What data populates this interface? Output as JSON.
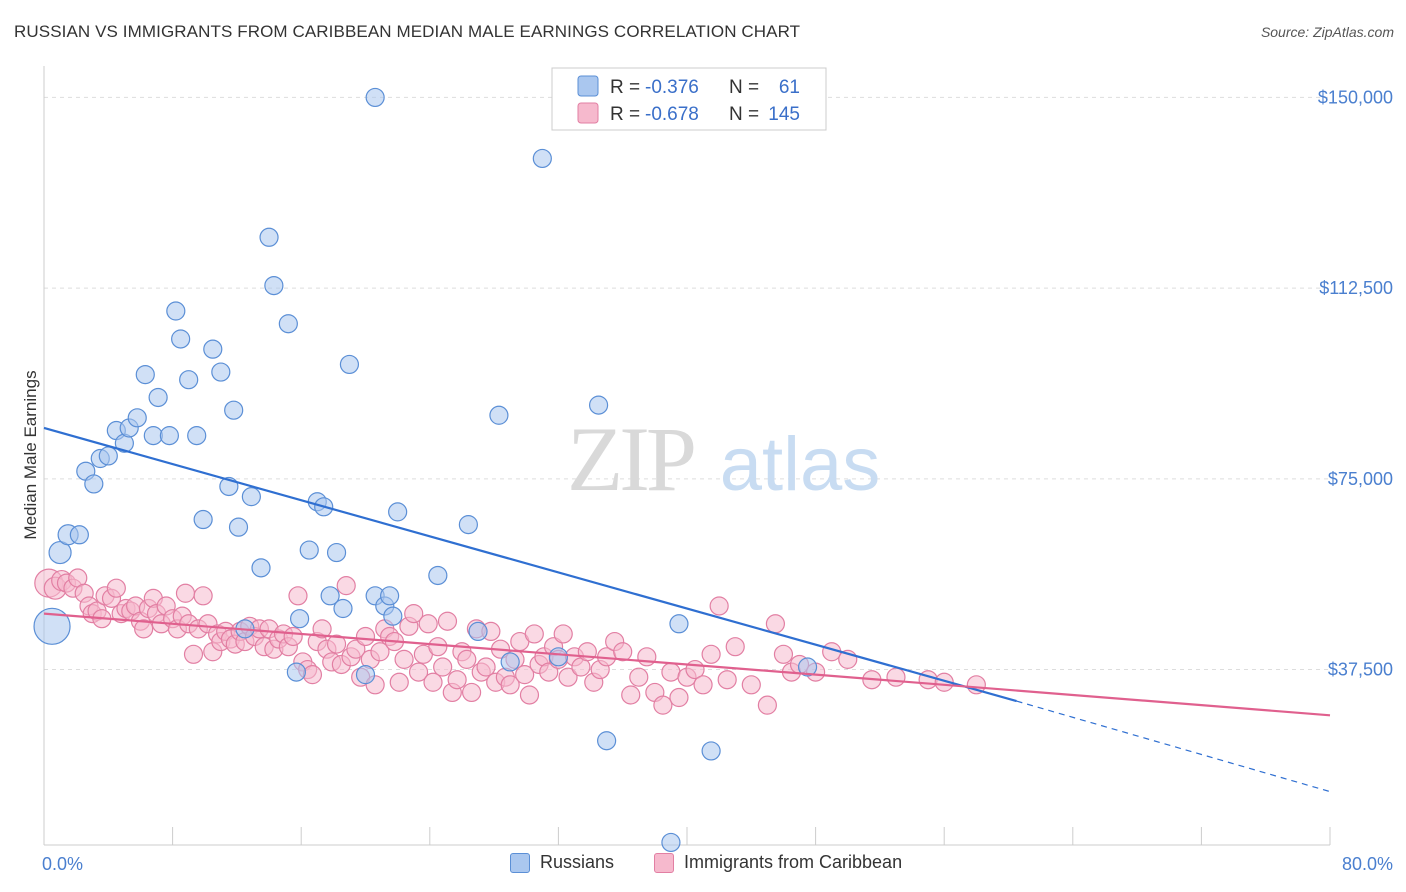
{
  "title": "RUSSIAN VS IMMIGRANTS FROM CARIBBEAN MEDIAN MALE EARNINGS CORRELATION CHART",
  "source": "Source: ZipAtlas.com",
  "watermark": {
    "zip": "ZIP",
    "atlas": "atlas"
  },
  "colors": {
    "blue_fill": "#aac7ef",
    "blue_stroke": "#5b8fd6",
    "blue_line": "#2f6fd1",
    "pink_fill": "#f6b9cd",
    "pink_stroke": "#e27fa3",
    "pink_line": "#e0608e",
    "tick_label": "#4a7fcf",
    "grid": "#dddddd"
  },
  "legend": {
    "rows": [
      {
        "r_label": "R =",
        "r_value": "-0.376",
        "n_label": "N =",
        "n_value": "61",
        "series": "russians"
      },
      {
        "r_label": "R =",
        "r_value": "-0.678",
        "n_label": "N =",
        "n_value": "145",
        "series": "caribbean"
      }
    ]
  },
  "bottom_legend": {
    "russians": "Russians",
    "caribbean": "Immigrants from Caribbean"
  },
  "chart_data": {
    "type": "scatter",
    "xlabel": "",
    "ylabel": "Median Male Earnings",
    "xlim": [
      0,
      80
    ],
    "ylim": [
      3000,
      155000
    ],
    "x_tick_labels": [
      "0.0%",
      "80.0%"
    ],
    "y_ticks": [
      37500,
      75000,
      112500,
      150000
    ],
    "y_tick_labels": [
      "$37,500",
      "$75,000",
      "$112,500",
      "$150,000"
    ],
    "grid": true,
    "series": [
      {
        "name": "Russians",
        "r": -0.376,
        "n": 61,
        "trend": {
          "x0": 0,
          "y0": 85000,
          "x1": 60.5,
          "y1": 31300,
          "dash_to_x": 80,
          "dash_to_y": 13500
        },
        "points": [
          [
            0.5,
            46000,
            18
          ],
          [
            1.0,
            60500,
            11
          ],
          [
            1.5,
            64000,
            10
          ],
          [
            2.2,
            64000,
            9
          ],
          [
            2.6,
            76500,
            9
          ],
          [
            3.1,
            74000,
            9
          ],
          [
            3.5,
            79000,
            9
          ],
          [
            4.0,
            79500,
            9
          ],
          [
            4.5,
            84500,
            9
          ],
          [
            5.0,
            82000,
            9
          ],
          [
            5.3,
            85000,
            9
          ],
          [
            5.8,
            87000,
            9
          ],
          [
            6.3,
            95500,
            9
          ],
          [
            6.8,
            83500,
            9
          ],
          [
            7.1,
            91000,
            9
          ],
          [
            7.8,
            83500,
            9
          ],
          [
            8.2,
            108000,
            9
          ],
          [
            8.5,
            102500,
            9
          ],
          [
            9.0,
            94500,
            9
          ],
          [
            9.5,
            83500,
            9
          ],
          [
            9.9,
            67000,
            9
          ],
          [
            10.5,
            100500,
            9
          ],
          [
            11.0,
            96000,
            9
          ],
          [
            11.5,
            73500,
            9
          ],
          [
            11.8,
            88500,
            9
          ],
          [
            12.1,
            65500,
            9
          ],
          [
            12.9,
            71500,
            9
          ],
          [
            13.5,
            57500,
            9
          ],
          [
            14.0,
            122500,
            9
          ],
          [
            14.3,
            113000,
            9
          ],
          [
            15.2,
            105500,
            9
          ],
          [
            15.7,
            37000,
            9
          ],
          [
            15.9,
            47500,
            9
          ],
          [
            16.5,
            61000,
            9
          ],
          [
            17.0,
            70500,
            9
          ],
          [
            17.4,
            69500,
            9
          ],
          [
            18.2,
            60500,
            9
          ],
          [
            18.6,
            49500,
            9
          ],
          [
            19.0,
            97500,
            9
          ],
          [
            17.8,
            52000,
            9
          ],
          [
            20.0,
            36500,
            9
          ],
          [
            20.6,
            52000,
            9
          ],
          [
            21.2,
            50000,
            9
          ],
          [
            21.7,
            48000,
            9
          ],
          [
            22.0,
            68500,
            9
          ],
          [
            24.5,
            56000,
            9
          ],
          [
            26.4,
            66000,
            9
          ],
          [
            27.0,
            45000,
            9
          ],
          [
            28.3,
            87500,
            9
          ],
          [
            29.0,
            39000,
            9
          ],
          [
            31.0,
            138000,
            9
          ],
          [
            32.0,
            40000,
            9
          ],
          [
            34.5,
            89500,
            9
          ],
          [
            35.0,
            23500,
            9
          ],
          [
            39.0,
            3500,
            9
          ],
          [
            39.5,
            46500,
            9
          ],
          [
            41.5,
            21500,
            9
          ],
          [
            47.5,
            38000,
            9
          ],
          [
            20.6,
            150000,
            9
          ],
          [
            21.5,
            52000,
            9
          ],
          [
            12.5,
            45500,
            9
          ]
        ]
      },
      {
        "name": "Immigrants from Caribbean",
        "r": -0.678,
        "n": 145,
        "trend": {
          "x0": 0,
          "y0": 48500,
          "x1": 80,
          "y1": 28500
        },
        "points": [
          [
            0.3,
            54500,
            14
          ],
          [
            0.7,
            53500,
            11
          ],
          [
            1.1,
            55000,
            10
          ],
          [
            1.4,
            54500,
            9
          ],
          [
            1.8,
            53500,
            9
          ],
          [
            2.1,
            55500,
            9
          ],
          [
            2.5,
            52500,
            9
          ],
          [
            2.8,
            50000,
            9
          ],
          [
            3.0,
            48500,
            9
          ],
          [
            3.3,
            49000,
            9
          ],
          [
            3.6,
            47500,
            9
          ],
          [
            3.8,
            52000,
            9
          ],
          [
            4.2,
            51500,
            9
          ],
          [
            4.5,
            53500,
            9
          ],
          [
            4.8,
            48500,
            9
          ],
          [
            5.1,
            49500,
            9
          ],
          [
            5.4,
            49000,
            9
          ],
          [
            5.7,
            50000,
            9
          ],
          [
            6.0,
            47000,
            9
          ],
          [
            6.2,
            45500,
            9
          ],
          [
            6.5,
            49500,
            9
          ],
          [
            6.8,
            51500,
            9
          ],
          [
            7.0,
            48500,
            9
          ],
          [
            7.3,
            46500,
            9
          ],
          [
            7.6,
            50000,
            9
          ],
          [
            8.0,
            47500,
            9
          ],
          [
            8.3,
            45500,
            9
          ],
          [
            8.6,
            48000,
            9
          ],
          [
            8.8,
            52500,
            9
          ],
          [
            9.0,
            46500,
            9
          ],
          [
            9.3,
            40500,
            9
          ],
          [
            9.6,
            45500,
            9
          ],
          [
            9.9,
            52000,
            9
          ],
          [
            10.2,
            46500,
            9
          ],
          [
            10.5,
            41000,
            9
          ],
          [
            10.8,
            44500,
            9
          ],
          [
            11.0,
            43000,
            9
          ],
          [
            11.3,
            45000,
            9
          ],
          [
            11.6,
            43500,
            9
          ],
          [
            11.9,
            42500,
            9
          ],
          [
            12.2,
            45000,
            9
          ],
          [
            12.5,
            43000,
            9
          ],
          [
            12.8,
            46000,
            9
          ],
          [
            13.1,
            44000,
            9
          ],
          [
            13.4,
            45500,
            9
          ],
          [
            13.7,
            42000,
            9
          ],
          [
            14.0,
            45500,
            9
          ],
          [
            14.3,
            41500,
            9
          ],
          [
            14.6,
            43500,
            9
          ],
          [
            14.9,
            44500,
            9
          ],
          [
            15.2,
            42000,
            9
          ],
          [
            15.5,
            44000,
            9
          ],
          [
            15.8,
            52000,
            9
          ],
          [
            16.1,
            39000,
            9
          ],
          [
            16.4,
            37500,
            9
          ],
          [
            16.7,
            36500,
            9
          ],
          [
            17.0,
            43000,
            9
          ],
          [
            17.3,
            45500,
            9
          ],
          [
            17.6,
            41500,
            9
          ],
          [
            17.9,
            39000,
            9
          ],
          [
            18.2,
            42500,
            9
          ],
          [
            18.5,
            38500,
            9
          ],
          [
            18.8,
            54000,
            9
          ],
          [
            19.1,
            40000,
            9
          ],
          [
            19.4,
            41500,
            9
          ],
          [
            19.7,
            36000,
            9
          ],
          [
            20.0,
            44000,
            9
          ],
          [
            20.3,
            39500,
            9
          ],
          [
            20.6,
            34500,
            9
          ],
          [
            20.9,
            41000,
            9
          ],
          [
            21.2,
            45500,
            9
          ],
          [
            21.5,
            44000,
            9
          ],
          [
            21.8,
            43000,
            9
          ],
          [
            22.1,
            35000,
            9
          ],
          [
            22.4,
            39500,
            9
          ],
          [
            22.7,
            46000,
            9
          ],
          [
            23.0,
            48500,
            9
          ],
          [
            23.3,
            37000,
            9
          ],
          [
            23.6,
            40500,
            9
          ],
          [
            23.9,
            46500,
            9
          ],
          [
            24.2,
            35000,
            9
          ],
          [
            24.5,
            42000,
            9
          ],
          [
            24.8,
            38000,
            9
          ],
          [
            25.1,
            47000,
            9
          ],
          [
            25.4,
            33000,
            9
          ],
          [
            25.7,
            35500,
            9
          ],
          [
            26.0,
            41000,
            9
          ],
          [
            26.3,
            39500,
            9
          ],
          [
            26.6,
            33000,
            9
          ],
          [
            26.9,
            45500,
            9
          ],
          [
            27.2,
            37000,
            9
          ],
          [
            27.5,
            38000,
            9
          ],
          [
            27.8,
            45000,
            9
          ],
          [
            28.1,
            35000,
            9
          ],
          [
            28.4,
            41500,
            9
          ],
          [
            28.7,
            36000,
            9
          ],
          [
            29.0,
            34500,
            9
          ],
          [
            29.3,
            39500,
            9
          ],
          [
            29.6,
            43000,
            9
          ],
          [
            29.9,
            36500,
            9
          ],
          [
            30.2,
            32500,
            9
          ],
          [
            30.5,
            44500,
            9
          ],
          [
            30.8,
            38500,
            9
          ],
          [
            31.1,
            40000,
            9
          ],
          [
            31.4,
            37000,
            9
          ],
          [
            31.7,
            42000,
            9
          ],
          [
            32.0,
            39500,
            9
          ],
          [
            32.3,
            44500,
            9
          ],
          [
            32.6,
            36000,
            9
          ],
          [
            33.0,
            40000,
            9
          ],
          [
            33.4,
            38000,
            9
          ],
          [
            33.8,
            41000,
            9
          ],
          [
            34.2,
            35000,
            9
          ],
          [
            34.6,
            37500,
            9
          ],
          [
            35.0,
            40000,
            9
          ],
          [
            35.5,
            43000,
            9
          ],
          [
            36.0,
            41000,
            9
          ],
          [
            36.5,
            32500,
            9
          ],
          [
            37.0,
            36000,
            9
          ],
          [
            37.5,
            40000,
            9
          ],
          [
            38.0,
            33000,
            9
          ],
          [
            38.5,
            30500,
            9
          ],
          [
            39.0,
            37000,
            9
          ],
          [
            39.5,
            32000,
            9
          ],
          [
            40.0,
            36000,
            9
          ],
          [
            40.5,
            37500,
            9
          ],
          [
            41.0,
            34500,
            9
          ],
          [
            41.5,
            40500,
            9
          ],
          [
            42.0,
            50000,
            9
          ],
          [
            42.5,
            35500,
            9
          ],
          [
            43.0,
            42000,
            9
          ],
          [
            44.0,
            34500,
            9
          ],
          [
            45.0,
            30500,
            9
          ],
          [
            45.5,
            46500,
            9
          ],
          [
            46.0,
            40500,
            9
          ],
          [
            46.5,
            37000,
            9
          ],
          [
            47.0,
            38500,
            9
          ],
          [
            48.0,
            37000,
            9
          ],
          [
            49.0,
            41000,
            9
          ],
          [
            50.0,
            39500,
            9
          ],
          [
            51.5,
            35500,
            9
          ],
          [
            53.0,
            36000,
            9
          ],
          [
            55.0,
            35500,
            9
          ],
          [
            56.0,
            35000,
            9
          ],
          [
            58.0,
            34500,
            9
          ]
        ]
      }
    ]
  }
}
